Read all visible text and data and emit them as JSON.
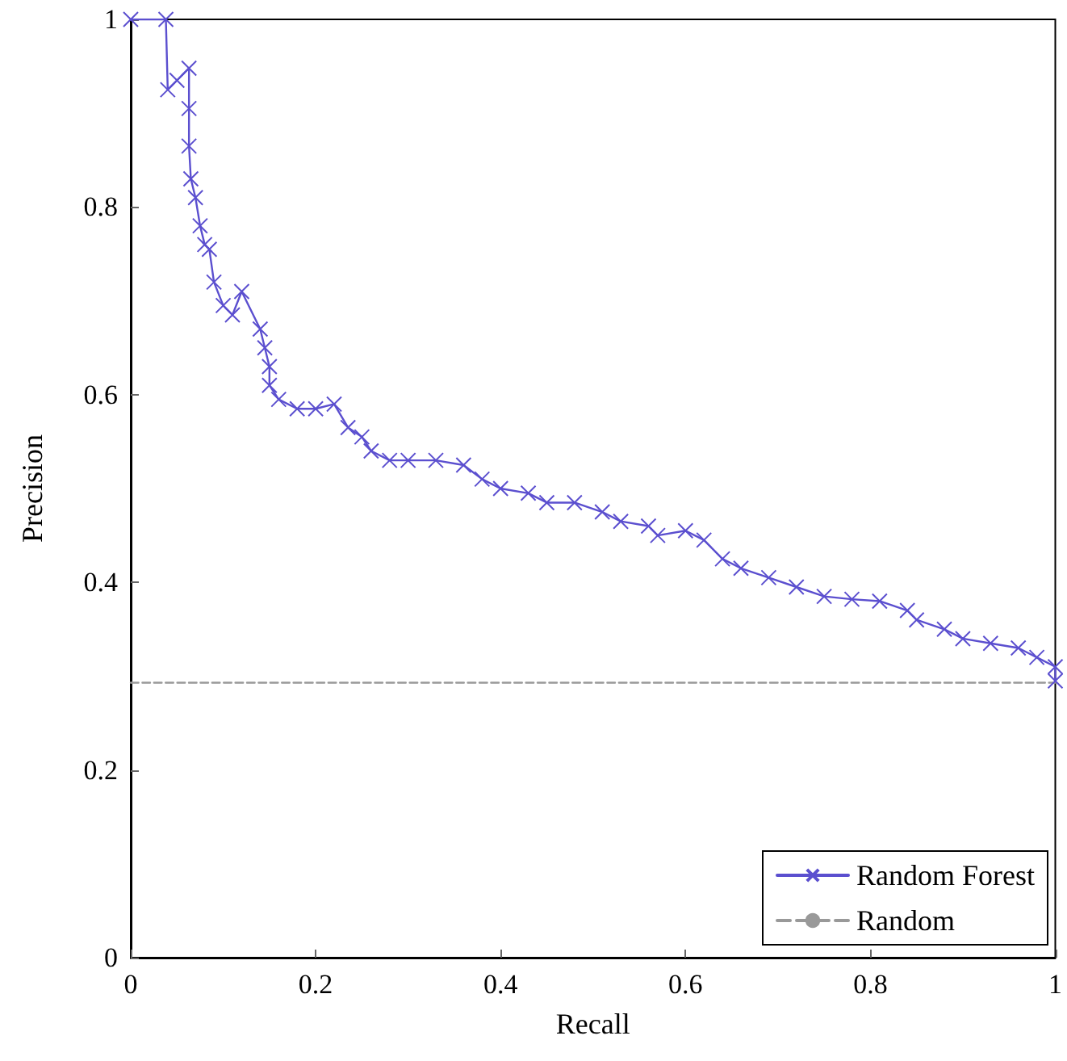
{
  "chart_data": {
    "type": "line",
    "xlabel": "Recall",
    "ylabel": "Precision",
    "xlim": [
      0,
      1
    ],
    "ylim": [
      0,
      1
    ],
    "xticks": [
      0,
      0.2,
      0.4,
      0.6,
      0.8,
      1
    ],
    "yticks": [
      0,
      0.2,
      0.4,
      0.6,
      0.8,
      1
    ],
    "grid": false,
    "legend": "bottom right",
    "marker": "cross",
    "series": [
      {
        "name": "Random Forest",
        "color": "#5b4fcf",
        "x": [
          0,
          0.038,
          0.04,
          0.05,
          0.063,
          0.063,
          0.063,
          0.065,
          0.07,
          0.075,
          0.08,
          0.085,
          0.09,
          0.1,
          0.11,
          0.12,
          0.14,
          0.145,
          0.15,
          0.15,
          0.16,
          0.18,
          0.2,
          0.22,
          0.235,
          0.25,
          0.26,
          0.28,
          0.3,
          0.33,
          0.36,
          0.38,
          0.4,
          0.43,
          0.45,
          0.48,
          0.51,
          0.53,
          0.56,
          0.57,
          0.6,
          0.62,
          0.64,
          0.66,
          0.69,
          0.72,
          0.75,
          0.78,
          0.81,
          0.84,
          0.85,
          0.88,
          0.9,
          0.93,
          0.96,
          0.98,
          1,
          1
        ],
        "values": [
          1,
          1,
          0.925,
          0.935,
          0.948,
          0.905,
          0.865,
          0.83,
          0.81,
          0.78,
          0.76,
          0.755,
          0.72,
          0.695,
          0.685,
          0.71,
          0.67,
          0.65,
          0.63,
          0.61,
          0.595,
          0.585,
          0.585,
          0.59,
          0.565,
          0.555,
          0.54,
          0.53,
          0.53,
          0.53,
          0.525,
          0.51,
          0.5,
          0.495,
          0.485,
          0.485,
          0.475,
          0.465,
          0.46,
          0.45,
          0.455,
          0.445,
          0.425,
          0.415,
          0.405,
          0.395,
          0.385,
          0.382,
          0.38,
          0.37,
          0.36,
          0.35,
          0.34,
          0.335,
          0.33,
          0.32,
          0.31,
          0.295
        ]
      },
      {
        "name": "Random",
        "color": "#999999",
        "type": "line",
        "marker": "none",
        "line_style": "dashed",
        "x": [
          0,
          1
        ],
        "values": [
          0.293,
          0.293
        ]
      }
    ]
  }
}
